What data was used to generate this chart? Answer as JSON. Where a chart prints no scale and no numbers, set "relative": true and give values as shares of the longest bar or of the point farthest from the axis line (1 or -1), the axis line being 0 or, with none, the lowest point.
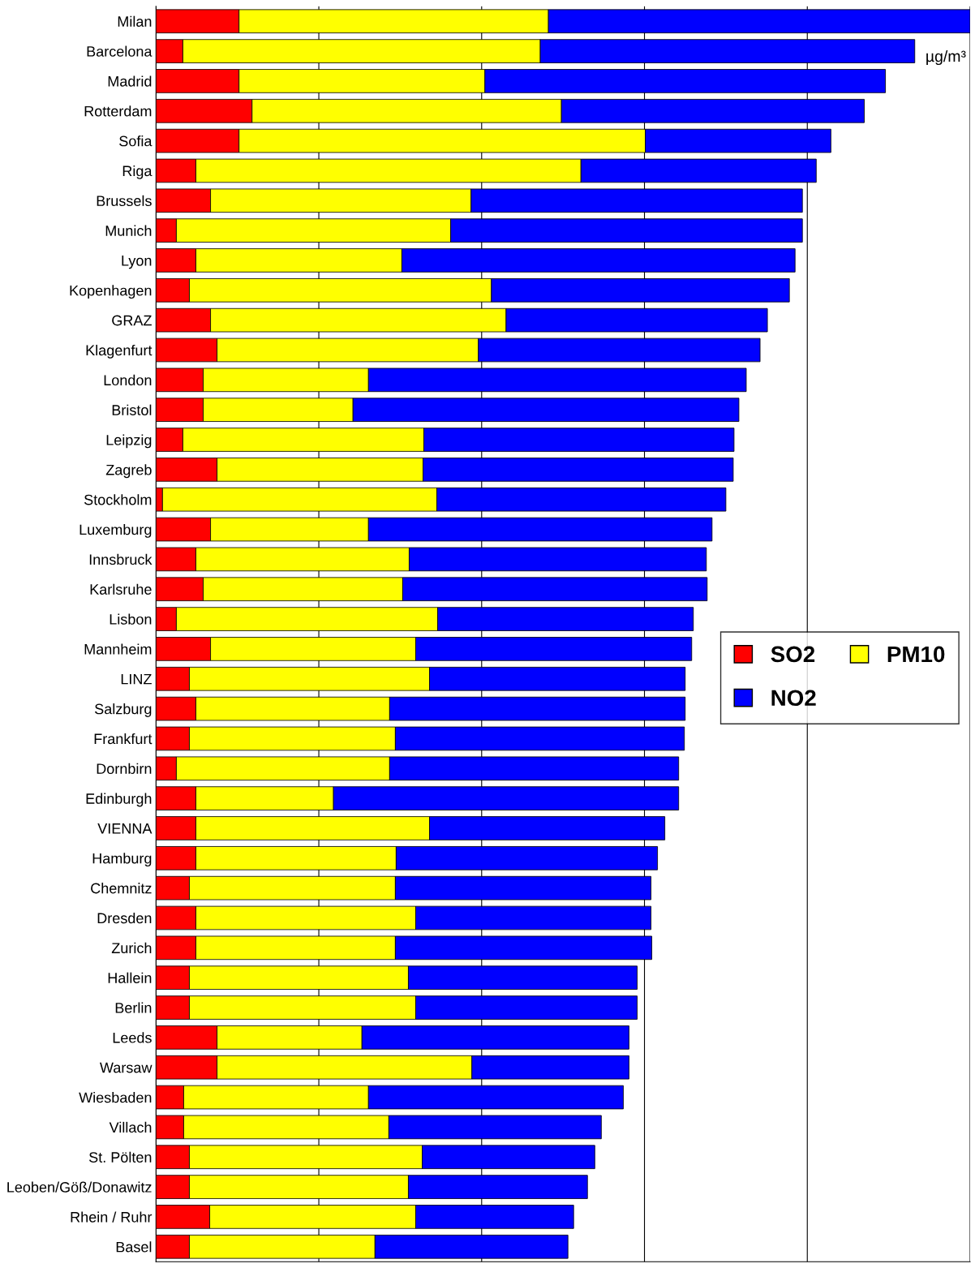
{
  "chart_data": {
    "type": "bar",
    "orientation": "horizontal",
    "stacked": true,
    "relative": true,
    "grid": "x",
    "legend": "right",
    "annotations": [
      "µg/m³"
    ],
    "categories": [
      "Milan",
      "Barcelona",
      "Madrid",
      "Rotterdam",
      "Sofia",
      "Riga",
      "Brussels",
      "Munich",
      "Lyon",
      "Kopenhagen",
      "GRAZ",
      "Klagenfurt",
      "London",
      "Bristol",
      "Leipzig",
      "Zagreb",
      "Stockholm",
      "Luxemburg",
      "Innsbruck",
      "Karlsruhe",
      "Lisbon",
      "Mannheim",
      "LINZ",
      "Salzburg",
      "Frankfurt",
      "Dornbirn",
      "Edinburgh",
      "VIENNA",
      "Hamburg",
      "Chemnitz",
      "Dresden",
      "Zurich",
      "Hallein",
      "Berlin",
      "Leeds",
      "Warsaw",
      "Wiesbaden",
      "Villach",
      "St. Pölten",
      "Leoben/Göß/Donawitz",
      "Rhein / Ruhr",
      "Basel"
    ],
    "series": [
      {
        "name": "SO2",
        "color": "#ff0000",
        "values": [
          0.102,
          0.033,
          0.102,
          0.118,
          0.102,
          0.049,
          0.067,
          0.025,
          0.049,
          0.041,
          0.067,
          0.075,
          0.058,
          0.058,
          0.033,
          0.075,
          0.008,
          0.067,
          0.049,
          0.058,
          0.025,
          0.067,
          0.041,
          0.049,
          0.041,
          0.025,
          0.049,
          0.049,
          0.049,
          0.041,
          0.049,
          0.049,
          0.041,
          0.041,
          0.075,
          0.075,
          0.034,
          0.034,
          0.041,
          0.041,
          0.066,
          0.041
        ]
      },
      {
        "name": "PM10",
        "color": "#ffff00",
        "values": [
          0.38,
          0.439,
          0.302,
          0.38,
          0.499,
          0.473,
          0.32,
          0.337,
          0.253,
          0.371,
          0.363,
          0.321,
          0.203,
          0.184,
          0.296,
          0.253,
          0.337,
          0.194,
          0.262,
          0.245,
          0.321,
          0.252,
          0.295,
          0.238,
          0.253,
          0.262,
          0.169,
          0.287,
          0.246,
          0.253,
          0.27,
          0.245,
          0.269,
          0.278,
          0.178,
          0.313,
          0.227,
          0.252,
          0.286,
          0.269,
          0.253,
          0.228
        ]
      },
      {
        "name": "NO2",
        "color": "#0000ff",
        "values": [
          0.518,
          0.46,
          0.492,
          0.372,
          0.228,
          0.289,
          0.407,
          0.432,
          0.483,
          0.366,
          0.321,
          0.346,
          0.464,
          0.474,
          0.381,
          0.381,
          0.355,
          0.422,
          0.365,
          0.374,
          0.314,
          0.339,
          0.314,
          0.363,
          0.355,
          0.355,
          0.424,
          0.289,
          0.321,
          0.314,
          0.289,
          0.315,
          0.281,
          0.272,
          0.328,
          0.193,
          0.313,
          0.261,
          0.212,
          0.22,
          0.194,
          0.237
        ]
      }
    ]
  }
}
